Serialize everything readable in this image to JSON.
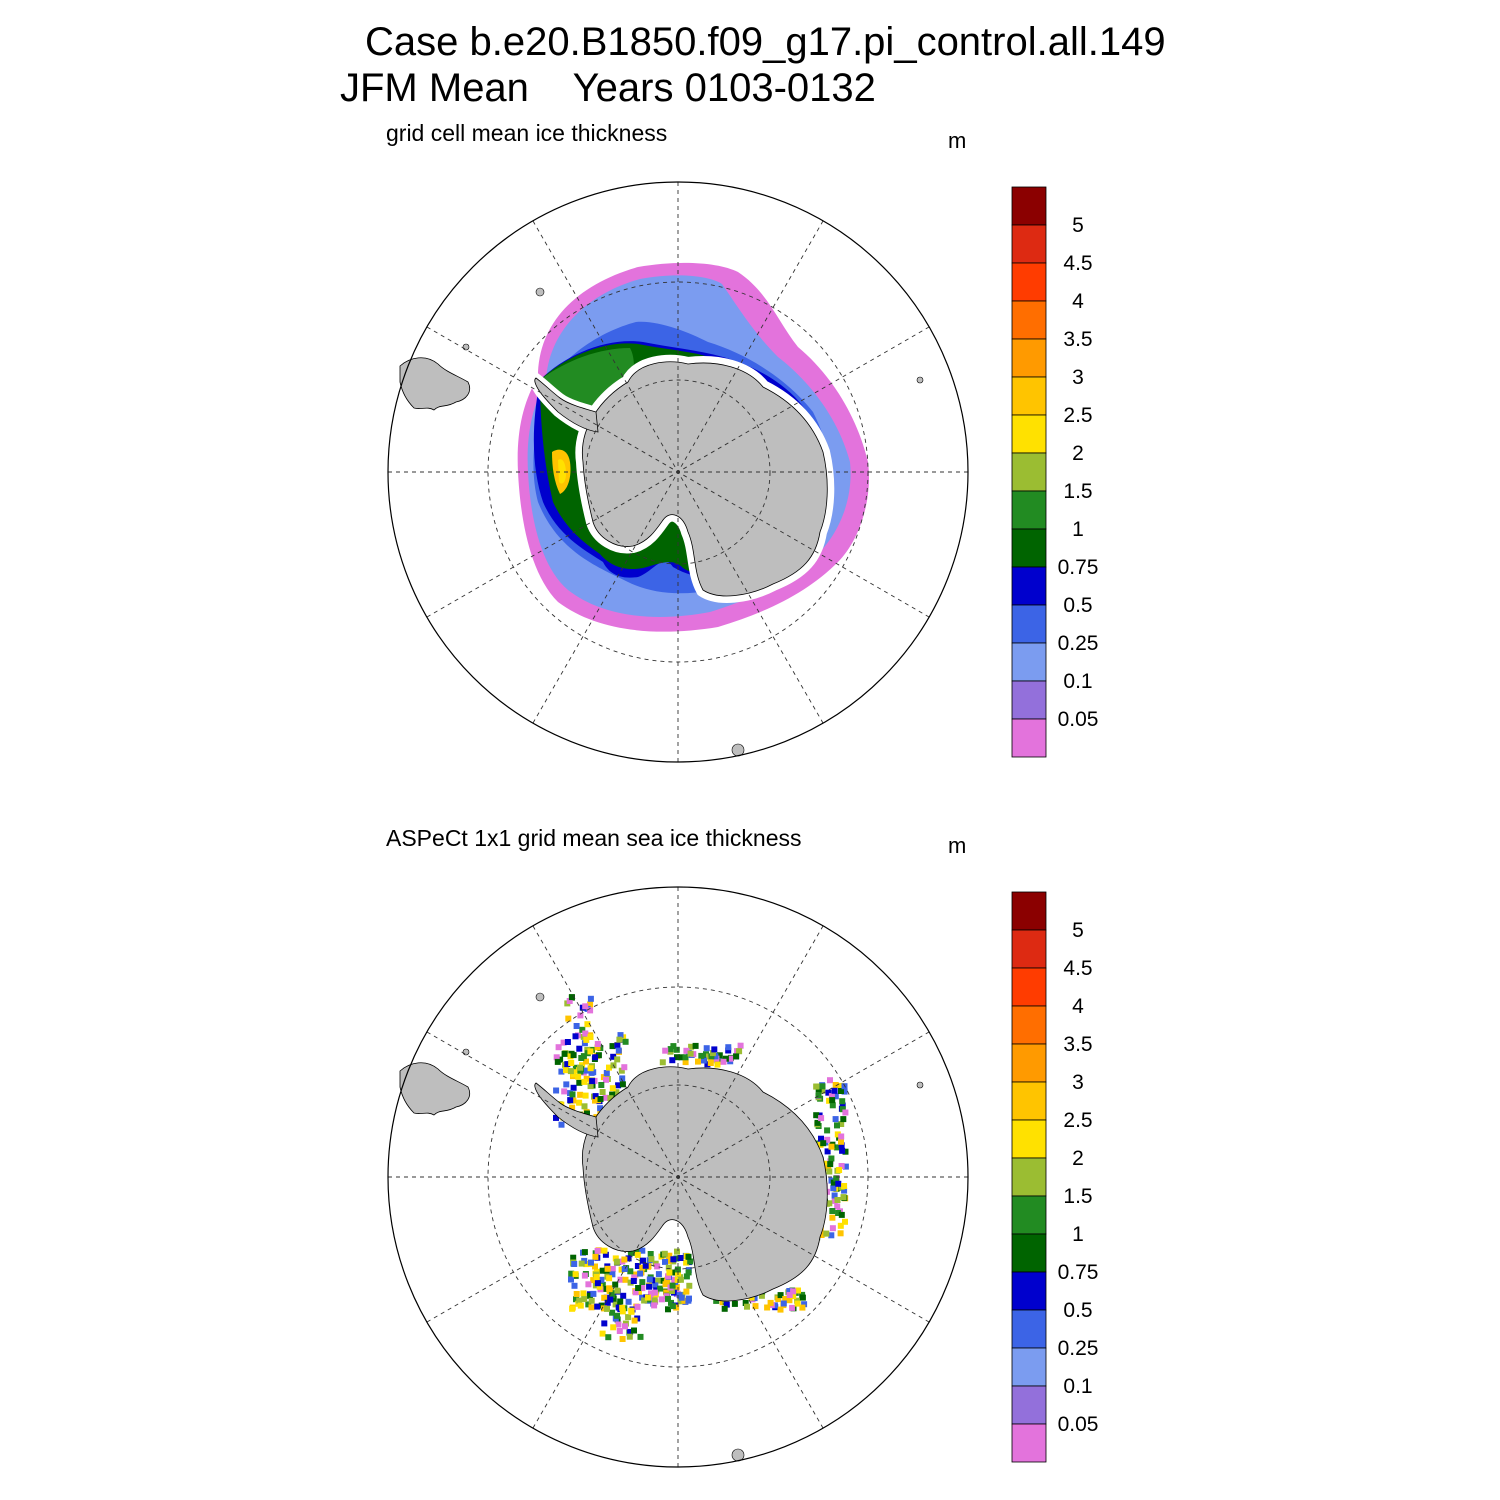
{
  "title": {
    "line1": "Case b.e20.B1850.f09_g17.pi_control.all.149",
    "line2": "JFM Mean    Years 0103-0132"
  },
  "panels": [
    {
      "id": "model",
      "title": "grid cell mean ice thickness",
      "units": "m"
    },
    {
      "id": "obs",
      "title": "ASPeCt 1x1 grid mean sea ice thickness",
      "units": "m"
    }
  ],
  "colorbar": {
    "labels": [
      "5",
      "4.5",
      "4",
      "3.5",
      "3",
      "2.5",
      "2",
      "1.5",
      "1",
      "0.75",
      "0.5",
      "0.25",
      "0.1",
      "0.05"
    ],
    "colors": [
      "#8b0000",
      "#dd2a12",
      "#ff3c00",
      "#ff6e00",
      "#ff9a00",
      "#ffc400",
      "#ffe100",
      "#9bbd32",
      "#228b22",
      "#006400",
      "#0000cd",
      "#3c64e6",
      "#7b9cf0",
      "#9370db",
      "#e373dc"
    ]
  },
  "map": {
    "land_color": "#bebebe",
    "projection": "south polar stereographic",
    "grid": "dashed"
  }
}
